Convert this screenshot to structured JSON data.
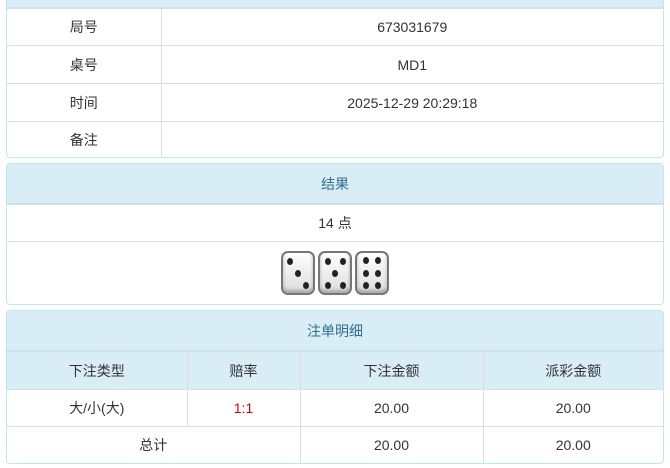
{
  "info": {
    "rows": [
      {
        "label": "局号",
        "value": "673031679"
      },
      {
        "label": "桌号",
        "value": "MD1"
      },
      {
        "label": "时间",
        "value": "2025-12-29 20:29:18"
      },
      {
        "label": "备注",
        "value": ""
      }
    ]
  },
  "result": {
    "title": "结果",
    "points": "14 点",
    "dice": [
      3,
      5,
      6
    ]
  },
  "bets": {
    "title": "注单明细",
    "headers": [
      "下注类型",
      "赔率",
      "下注金额",
      "派彩金额"
    ],
    "rows": [
      {
        "type": "大/小(大)",
        "odds": "1:1",
        "amount": "20.00",
        "payout": "20.00"
      }
    ],
    "total": {
      "label": "总计",
      "amount": "20.00",
      "payout": "20.00"
    },
    "odds_color": "#e00000"
  }
}
